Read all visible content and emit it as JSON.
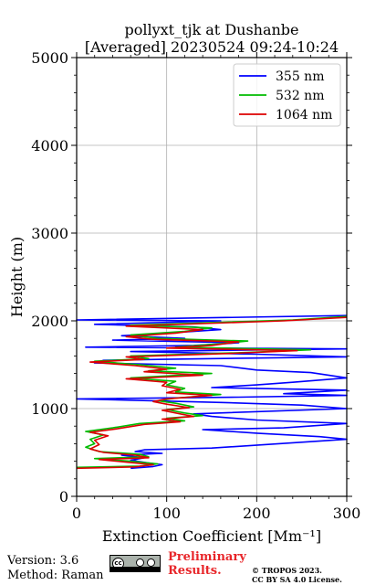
{
  "chart_data": {
    "type": "line",
    "title": "pollyxt_tjk at Dushanbe",
    "subtitle": "[Averaged] 20230524 09:24-10:24",
    "xlabel": "Extinction Coefficient [Mm⁻¹]",
    "ylabel": "Height (m)",
    "xlim": [
      0,
      300
    ],
    "ylim": [
      0,
      5000
    ],
    "xticks": [
      "0",
      "100",
      "200",
      "300"
    ],
    "yticks": [
      "0",
      "1000",
      "2000",
      "3000",
      "4000",
      "5000"
    ],
    "grid": true,
    "legend_position": "top-right",
    "series": [
      {
        "name": "355 nm",
        "color": "#0000ff",
        "points": [
          [
            60,
            320
          ],
          [
            85,
            340
          ],
          [
            95,
            360
          ],
          [
            80,
            380
          ],
          [
            60,
            410
          ],
          [
            75,
            440
          ],
          [
            50,
            470
          ],
          [
            95,
            490
          ],
          [
            65,
            510
          ],
          [
            75,
            530
          ],
          [
            150,
            550
          ],
          [
            300,
            650
          ],
          [
            270,
            680
          ],
          [
            200,
            720
          ],
          [
            140,
            760
          ],
          [
            230,
            780
          ],
          [
            300,
            830
          ],
          [
            200,
            870
          ],
          [
            150,
            910
          ],
          [
            130,
            940
          ],
          [
            300,
            1000
          ],
          [
            250,
            1040
          ],
          [
            160,
            1070
          ],
          [
            0,
            1110
          ],
          [
            180,
            1130
          ],
          [
            300,
            1150
          ],
          [
            230,
            1170
          ],
          [
            300,
            1210
          ],
          [
            150,
            1240
          ],
          [
            200,
            1270
          ],
          [
            240,
            1300
          ],
          [
            300,
            1350
          ],
          [
            260,
            1410
          ],
          [
            200,
            1440
          ],
          [
            160,
            1490
          ],
          [
            20,
            1520
          ],
          [
            30,
            1550
          ],
          [
            90,
            1560
          ],
          [
            300,
            1590
          ],
          [
            200,
            1620
          ],
          [
            60,
            1650
          ],
          [
            300,
            1680
          ],
          [
            10,
            1700
          ],
          [
            130,
            1720
          ],
          [
            180,
            1750
          ],
          [
            40,
            1780
          ],
          [
            120,
            1800
          ],
          [
            50,
            1830
          ],
          [
            100,
            1860
          ],
          [
            160,
            1900
          ],
          [
            130,
            1930
          ],
          [
            20,
            1960
          ],
          [
            160,
            2000
          ],
          [
            0,
            2010
          ],
          [
            300,
            2060
          ]
        ]
      },
      {
        "name": "532 nm",
        "color": "#00bb00",
        "points": [
          [
            0,
            330
          ],
          [
            70,
            345
          ],
          [
            90,
            370
          ],
          [
            60,
            400
          ],
          [
            20,
            430
          ],
          [
            80,
            450
          ],
          [
            70,
            480
          ],
          [
            25,
            510
          ],
          [
            10,
            560
          ],
          [
            20,
            600
          ],
          [
            15,
            650
          ],
          [
            30,
            700
          ],
          [
            10,
            740
          ],
          [
            40,
            780
          ],
          [
            70,
            830
          ],
          [
            120,
            860
          ],
          [
            100,
            890
          ],
          [
            140,
            920
          ],
          [
            120,
            950
          ],
          [
            100,
            990
          ],
          [
            130,
            1020
          ],
          [
            110,
            1060
          ],
          [
            90,
            1090
          ],
          [
            110,
            1120
          ],
          [
            160,
            1160
          ],
          [
            110,
            1190
          ],
          [
            120,
            1230
          ],
          [
            100,
            1270
          ],
          [
            110,
            1310
          ],
          [
            60,
            1350
          ],
          [
            150,
            1400
          ],
          [
            80,
            1430
          ],
          [
            110,
            1460
          ],
          [
            70,
            1500
          ],
          [
            20,
            1540
          ],
          [
            80,
            1570
          ],
          [
            60,
            1600
          ],
          [
            190,
            1640
          ],
          [
            260,
            1670
          ],
          [
            110,
            1700
          ],
          [
            160,
            1740
          ],
          [
            190,
            1770
          ],
          [
            90,
            1800
          ],
          [
            60,
            1840
          ],
          [
            120,
            1880
          ],
          [
            150,
            1920
          ],
          [
            60,
            1950
          ],
          [
            240,
            2010
          ],
          [
            300,
            2050
          ]
        ]
      },
      {
        "name": "1064 nm",
        "color": "#dd0000",
        "points": [
          [
            0,
            320
          ],
          [
            65,
            335
          ],
          [
            85,
            360
          ],
          [
            55,
            390
          ],
          [
            25,
            420
          ],
          [
            80,
            440
          ],
          [
            65,
            470
          ],
          [
            30,
            500
          ],
          [
            15,
            540
          ],
          [
            25,
            590
          ],
          [
            20,
            640
          ],
          [
            35,
            690
          ],
          [
            15,
            730
          ],
          [
            45,
            770
          ],
          [
            75,
            820
          ],
          [
            115,
            850
          ],
          [
            95,
            880
          ],
          [
            130,
            910
          ],
          [
            115,
            940
          ],
          [
            95,
            980
          ],
          [
            125,
            1010
          ],
          [
            100,
            1050
          ],
          [
            85,
            1080
          ],
          [
            100,
            1110
          ],
          [
            150,
            1150
          ],
          [
            100,
            1180
          ],
          [
            115,
            1220
          ],
          [
            95,
            1260
          ],
          [
            100,
            1300
          ],
          [
            55,
            1340
          ],
          [
            140,
            1380
          ],
          [
            75,
            1420
          ],
          [
            100,
            1450
          ],
          [
            65,
            1490
          ],
          [
            15,
            1530
          ],
          [
            75,
            1560
          ],
          [
            55,
            1590
          ],
          [
            175,
            1630
          ],
          [
            245,
            1660
          ],
          [
            100,
            1690
          ],
          [
            150,
            1720
          ],
          [
            180,
            1760
          ],
          [
            85,
            1790
          ],
          [
            55,
            1820
          ],
          [
            110,
            1860
          ],
          [
            140,
            1900
          ],
          [
            55,
            1940
          ],
          [
            230,
            2000
          ],
          [
            300,
            2040
          ]
        ]
      }
    ]
  },
  "footer": {
    "version": "Version: 3.6",
    "method": "Method: Raman",
    "preliminary_line1": "Preliminary",
    "preliminary_line2": "Results.",
    "copyright_line1": "© TROPOS 2023.",
    "copyright_line2": "CC BY SA 4.0 License.",
    "badge_text": "BY SA"
  }
}
